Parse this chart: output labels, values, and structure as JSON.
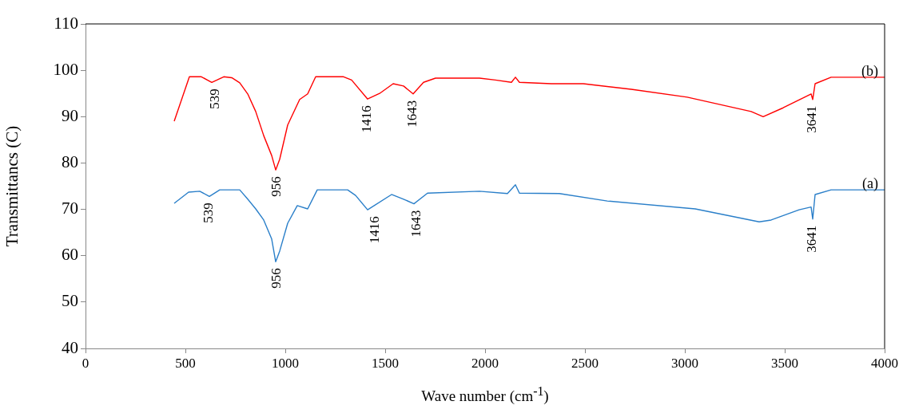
{
  "chart_data": {
    "type": "line",
    "xlabel": "Wave number (cm$^{-1}$)",
    "ylabel": "Transmittancs (C)",
    "xlim": [
      0,
      4000
    ],
    "xticks": [
      0,
      500,
      1000,
      1500,
      2000,
      2500,
      3000,
      3500,
      4000
    ],
    "ylim": [
      40,
      110
    ],
    "yticks": [
      40,
      50,
      60,
      70,
      80,
      90,
      100,
      110
    ],
    "grid": false,
    "legend": false,
    "marker": "none",
    "line_style": "solid",
    "series": [
      {
        "name": "(b)",
        "color": "#ff0000",
        "x": [
          444,
          520,
          580,
          632,
          692,
          732,
          772,
          812,
          852,
          892,
          932,
          952,
          972,
          1012,
          1072,
          1112,
          1152,
          1292,
          1332,
          1412,
          1472,
          1540,
          1592,
          1640,
          1692,
          1752,
          1972,
          2052,
          2132,
          2152,
          2172,
          2332,
          2492,
          2732,
          3012,
          3332,
          3392,
          3492,
          3632,
          3640,
          3652,
          3732,
          4000
        ],
        "values": [
          89.0,
          98.6,
          98.6,
          97.4,
          98.6,
          98.4,
          97.3,
          94.9,
          91.1,
          85.9,
          81.6,
          78.5,
          80.8,
          88.2,
          93.7,
          94.9,
          98.6,
          98.6,
          97.9,
          93.8,
          95.0,
          97.1,
          96.6,
          94.9,
          97.4,
          98.3,
          98.3,
          97.9,
          97.4,
          98.5,
          97.4,
          97.1,
          97.1,
          95.9,
          94.2,
          91.1,
          90.0,
          91.9,
          94.9,
          93.7,
          97.1,
          98.5,
          98.5
        ]
      },
      {
        "name": "(a)",
        "color": "#2a7fc9",
        "x": [
          444,
          516,
          572,
          620,
          672,
          772,
          812,
          852,
          892,
          932,
          952,
          972,
          1012,
          1060,
          1112,
          1160,
          1312,
          1352,
          1412,
          1532,
          1592,
          1644,
          1712,
          1972,
          2112,
          2152,
          2172,
          2372,
          2612,
          3052,
          3372,
          3432,
          3572,
          3632,
          3640,
          3652,
          3732,
          4000
        ],
        "values": [
          71.3,
          73.7,
          73.9,
          72.8,
          74.2,
          74.2,
          72.2,
          70.1,
          67.7,
          63.6,
          58.7,
          61.0,
          67.0,
          70.8,
          70.1,
          74.2,
          74.2,
          73.0,
          69.9,
          73.2,
          72.2,
          71.2,
          73.5,
          73.9,
          73.4,
          75.3,
          73.5,
          73.4,
          71.8,
          70.1,
          67.3,
          67.7,
          69.9,
          70.5,
          67.9,
          73.2,
          74.2,
          74.2
        ]
      }
    ],
    "annotations": [
      {
        "text": "539",
        "x": 652,
        "y": 97.4
      },
      {
        "text": "956",
        "x": 960,
        "y": 78.5
      },
      {
        "text": "1416",
        "x": 1412,
        "y": 93.8
      },
      {
        "text": "1643",
        "x": 1640,
        "y": 94.9
      },
      {
        "text": "3641",
        "x": 3640,
        "y": 93.7
      },
      {
        "text": "539",
        "x": 620,
        "y": 72.8
      },
      {
        "text": "956",
        "x": 960,
        "y": 58.7
      },
      {
        "text": "1416",
        "x": 1452,
        "y": 69.9
      },
      {
        "text": "1643",
        "x": 1660,
        "y": 71.2
      },
      {
        "text": "3641",
        "x": 3640,
        "y": 67.9
      }
    ]
  }
}
